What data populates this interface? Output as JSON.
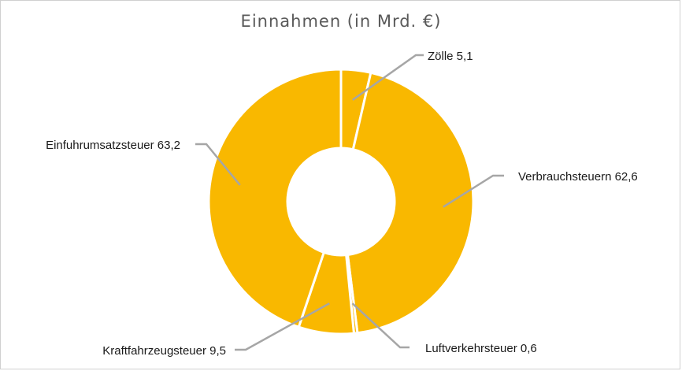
{
  "chart_data": {
    "type": "pie",
    "variant": "donut",
    "title": "Einnahmen (in Mrd. €)",
    "slice_color": "#F9B800",
    "separator_color": "#ffffff",
    "slices": [
      {
        "name": "Zölle",
        "value": 5.1,
        "label": "Zölle 5,1"
      },
      {
        "name": "Verbrauchsteuern",
        "value": 62.6,
        "label": "Verbrauchsteuern 62,6"
      },
      {
        "name": "Luftverkehrsteuer",
        "value": 0.6,
        "label": "Luftverkehrsteuer 0,6"
      },
      {
        "name": "Kraftfahrzeugsteuer",
        "value": 9.5,
        "label": "Kraftfahrzeugsteuer 9,5"
      },
      {
        "name": "Einfuhrumsatzsteuer",
        "value": 63.2,
        "label": "Einfuhrumsatzsteuer 63,2"
      }
    ]
  }
}
